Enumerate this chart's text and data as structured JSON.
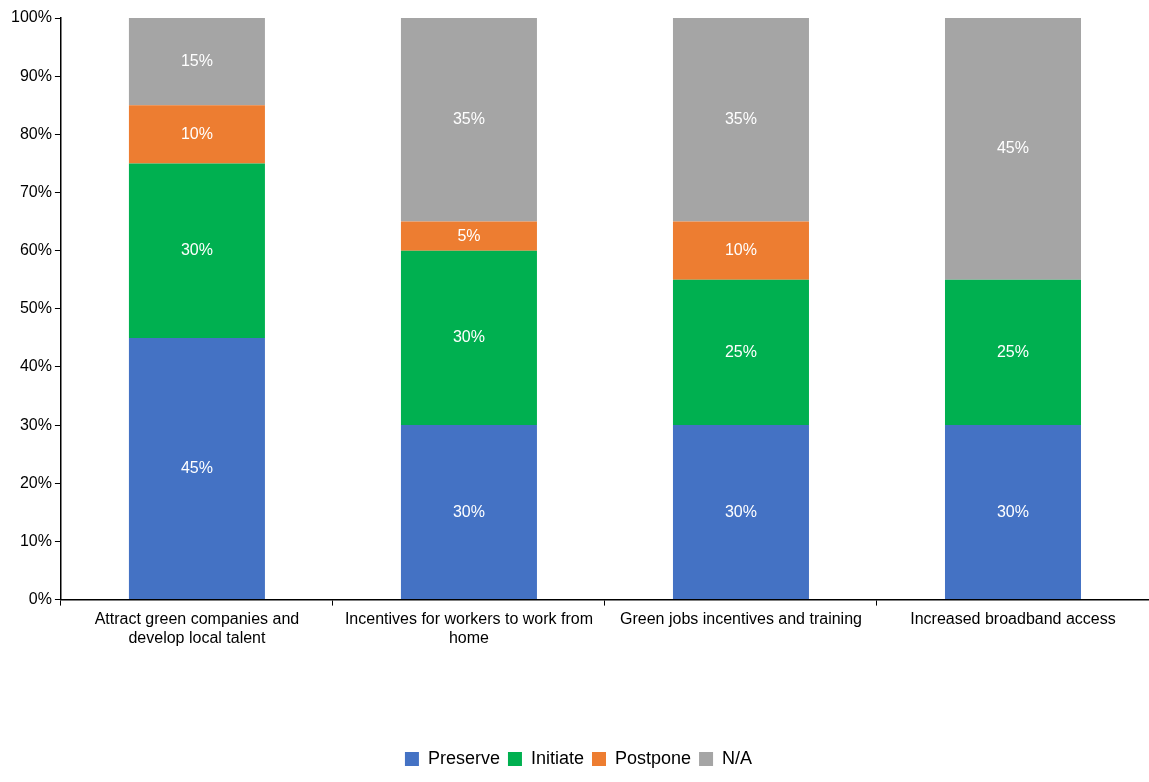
{
  "chart_data": {
    "type": "bar",
    "stacked": true,
    "categories": [
      "Attract green companies and develop local talent",
      "Incentives for workers to work from home",
      "Green jobs incentives and training",
      "Increased broadband access"
    ],
    "series": [
      {
        "name": "Preserve",
        "color": "#4472c4",
        "values": [
          45,
          30,
          30,
          30
        ],
        "value_labels": [
          "45%",
          "30%",
          "30%",
          "30%"
        ]
      },
      {
        "name": "Initiate",
        "color": "#00b050",
        "values": [
          30,
          30,
          25,
          25
        ],
        "value_labels": [
          "30%",
          "30%",
          "25%",
          "25%"
        ]
      },
      {
        "name": "Postpone",
        "color": "#ed7d31",
        "values": [
          10,
          5,
          10,
          null
        ],
        "value_labels": [
          "10%",
          "5%",
          "10%",
          null
        ]
      },
      {
        "name": "N/A",
        "color": "#a5a5a5",
        "values": [
          15,
          35,
          35,
          45
        ],
        "value_labels": [
          "15%",
          "35%",
          "35%",
          "45%"
        ]
      }
    ],
    "ylim": [
      0,
      100
    ],
    "yticks": [
      {
        "value": 0,
        "label": "0%"
      },
      {
        "value": 10,
        "label": "10%"
      },
      {
        "value": 20,
        "label": "20%"
      },
      {
        "value": 30,
        "label": "30%"
      },
      {
        "value": 40,
        "label": "40%"
      },
      {
        "value": 50,
        "label": "50%"
      },
      {
        "value": 60,
        "label": "60%"
      },
      {
        "value": 70,
        "label": "70%"
      },
      {
        "value": 80,
        "label": "80%"
      },
      {
        "value": 90,
        "label": "90%"
      },
      {
        "value": 100,
        "label": "100%"
      }
    ],
    "legend": "bottom"
  }
}
